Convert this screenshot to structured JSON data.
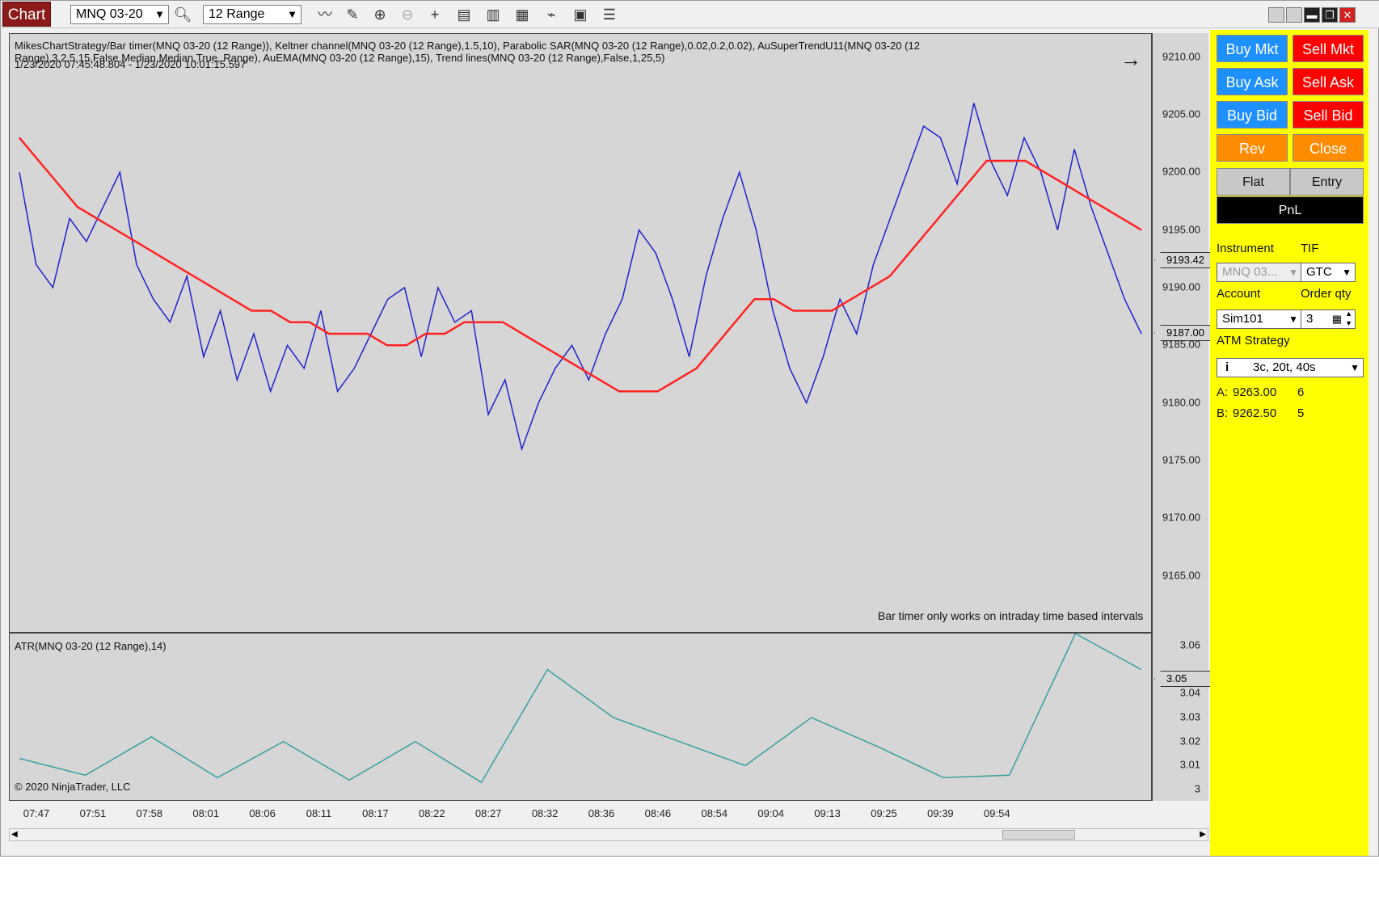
{
  "toolbar": {
    "chart_tab": "Chart",
    "instrument": "MNQ 03-20",
    "period": "12 Range",
    "icons": [
      "search-icon",
      "line-chart-icon",
      "draw-icon",
      "zoom-in-icon",
      "zoom-out-icon",
      "crosshair-icon",
      "data-box-icon",
      "bar-type-icon",
      "indicators-icon",
      "strategy-icon",
      "properties-icon",
      "list-icon"
    ]
  },
  "window": {
    "controls": [
      "restore-icon",
      "restore-icon",
      "minimize-icon",
      "maximize-icon",
      "close-icon"
    ]
  },
  "main_panel": {
    "indicator_line1": "MikesChartStrategy/Bar timer(MNQ 03-20 (12 Range)), Keltner channel(MNQ 03-20 (12 Range),1.5,10), Parabolic SAR(MNQ 03-20 (12 Range),0.02,0.2,0.02), AuSuperTrendU11(MNQ 03-20 (12",
    "indicator_line2": "Range),3,2,5,15,False,Median,Median,True, Range), AuEMA(MNQ 03-20 (12 Range),15), Trend lines(MNQ 03-20 (12 Range),False,1,25,5)",
    "indicator_line3": "1/23/2020 07:45:48.804 - 1/23/2020 10:01:15.597",
    "bar_timer_msg": "Bar timer only works on intraday time based intervals",
    "y_ticks": [
      "9210.00",
      "9205.00",
      "9200.00",
      "9195.00",
      "9190.00",
      "9185.00",
      "9180.00",
      "9175.00",
      "9170.00",
      "9165.00"
    ],
    "price_tag_1": "9193.42",
    "price_tag_2": "9187.00"
  },
  "atr_panel": {
    "label": "ATR(MNQ 03-20 (12 Range),14)",
    "copyright": "© 2020 NinjaTrader, LLC",
    "y_ticks": [
      "3.06",
      "3.04",
      "3.03",
      "3.02",
      "3.01",
      "3"
    ],
    "price_tag": "3.05"
  },
  "x_axis": {
    "ticks": [
      "07:47",
      "07:51",
      "07:58",
      "08:01",
      "08:06",
      "08:11",
      "08:17",
      "08:22",
      "08:27",
      "08:32",
      "08:36",
      "08:46",
      "08:54",
      "09:04",
      "09:13",
      "09:25",
      "09:39",
      "09:54"
    ]
  },
  "trade_panel": {
    "buy_mkt": "Buy Mkt",
    "sell_mkt": "Sell Mkt",
    "buy_ask": "Buy Ask",
    "sell_ask": "Sell Ask",
    "buy_bid": "Buy Bid",
    "sell_bid": "Sell Bid",
    "rev": "Rev",
    "close": "Close",
    "flat": "Flat",
    "entry": "Entry",
    "pnl": "PnL",
    "instrument_label": "Instrument",
    "tif_label": "TIF",
    "instrument_value": "MNQ 03...",
    "tif_value": "GTC",
    "account_label": "Account",
    "order_qty_label": "Order qty",
    "account_value": "Sim101",
    "order_qty_value": "3",
    "atm_label": "ATM Strategy",
    "atm_value": "3c, 20t, 40s",
    "ask_label": "A:",
    "ask_price": "9263.00",
    "ask_size": "6",
    "bid_label": "B:",
    "bid_price": "9262.50",
    "bid_size": "5"
  },
  "chart_data": [
    {
      "type": "line",
      "title": "",
      "ylim": [
        9160,
        9212
      ],
      "series": [
        {
          "name": "Price",
          "color": "#2222cc",
          "values": [
            9200,
            9192,
            9190,
            9196,
            9194,
            9197,
            9200,
            9192,
            9189,
            9187,
            9191,
            9184,
            9188,
            9182,
            9186,
            9181,
            9185,
            9183,
            9188,
            9181,
            9183,
            9186,
            9189,
            9190,
            9184,
            9190,
            9187,
            9188,
            9179,
            9182,
            9176,
            9180,
            9183,
            9185,
            9182,
            9186,
            9189,
            9195,
            9193,
            9189,
            9184,
            9191,
            9196,
            9200,
            9195,
            9188,
            9183,
            9180,
            9184,
            9189,
            9186,
            9192,
            9196,
            9200,
            9204,
            9203,
            9199,
            9206,
            9201,
            9198,
            9203,
            9200,
            9195,
            9202,
            9197,
            9193,
            9189,
            9186
          ]
        },
        {
          "name": "EMA",
          "color": "#ff2222",
          "values": [
            9203,
            9201,
            9199,
            9197,
            9196,
            9195,
            9194,
            9193,
            9192,
            9191,
            9190,
            9189,
            9188,
            9188,
            9187,
            9187,
            9186,
            9186,
            9186,
            9185,
            9185,
            9186,
            9186,
            9187,
            9187,
            9187,
            9186,
            9185,
            9184,
            9183,
            9182,
            9181,
            9181,
            9181,
            9182,
            9183,
            9185,
            9187,
            9189,
            9189,
            9188,
            9188,
            9188,
            9189,
            9190,
            9191,
            9193,
            9195,
            9197,
            9199,
            9201,
            9201,
            9201,
            9200,
            9199,
            9198,
            9197,
            9196,
            9195
          ]
        }
      ]
    },
    {
      "type": "line",
      "title": "",
      "ylim": [
        2.995,
        3.065
      ],
      "series": [
        {
          "name": "ATR",
          "color": "#3aa0a0",
          "values": [
            3.013,
            3.006,
            3.022,
            3.005,
            3.02,
            3.004,
            3.02,
            3.003,
            3.05,
            3.03,
            3.02,
            3.01,
            3.03,
            3.018,
            3.005,
            3.006,
            3.065,
            3.05
          ]
        }
      ]
    }
  ]
}
